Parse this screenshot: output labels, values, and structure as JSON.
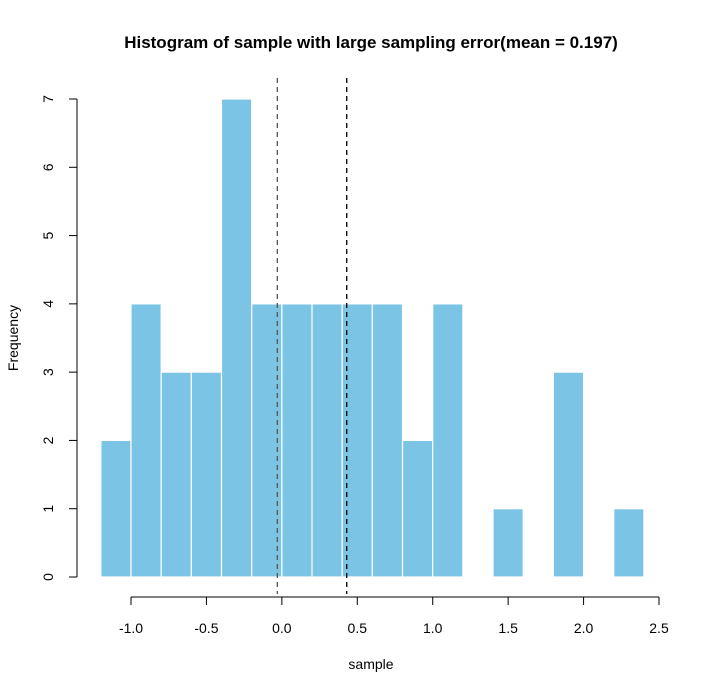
{
  "chart_data": {
    "type": "bar",
    "title": "Histogram of sample with large sampling error(mean = 0.197)",
    "xlabel": "sample",
    "ylabel": "Frequency",
    "bin_width": 0.2,
    "bins": [
      {
        "x0": -1.2,
        "x1": -1.0,
        "count": 2
      },
      {
        "x0": -1.0,
        "x1": -0.8,
        "count": 4
      },
      {
        "x0": -0.8,
        "x1": -0.6,
        "count": 3
      },
      {
        "x0": -0.6,
        "x1": -0.4,
        "count": 3
      },
      {
        "x0": -0.4,
        "x1": -0.2,
        "count": 7
      },
      {
        "x0": -0.2,
        "x1": 0.0,
        "count": 4
      },
      {
        "x0": 0.0,
        "x1": 0.2,
        "count": 4
      },
      {
        "x0": 0.2,
        "x1": 0.4,
        "count": 4
      },
      {
        "x0": 0.4,
        "x1": 0.6,
        "count": 4
      },
      {
        "x0": 0.6,
        "x1": 0.8,
        "count": 4
      },
      {
        "x0": 0.8,
        "x1": 1.0,
        "count": 2
      },
      {
        "x0": 1.0,
        "x1": 1.2,
        "count": 4
      },
      {
        "x0": 1.2,
        "x1": 1.4,
        "count": 0
      },
      {
        "x0": 1.4,
        "x1": 1.6,
        "count": 1
      },
      {
        "x0": 1.6,
        "x1": 1.8,
        "count": 0
      },
      {
        "x0": 1.8,
        "x1": 2.0,
        "count": 3
      },
      {
        "x0": 2.0,
        "x1": 2.2,
        "count": 0
      },
      {
        "x0": 2.2,
        "x1": 2.4,
        "count": 1
      }
    ],
    "xlim": [
      -1.0,
      2.5
    ],
    "ylim": [
      0,
      7
    ],
    "x_ticks": [
      -1.0,
      -0.5,
      0.0,
      0.5,
      1.0,
      1.5,
      2.0,
      2.5
    ],
    "x_tick_labels": [
      "-1.0",
      "-0.5",
      "0.0",
      "0.5",
      "1.0",
      "1.5",
      "2.0",
      "2.5"
    ],
    "y_ticks": [
      0,
      1,
      2,
      3,
      4,
      5,
      6,
      7
    ],
    "y_tick_labels": [
      "0",
      "1",
      "2",
      "3",
      "4",
      "5",
      "6",
      "7"
    ],
    "reference_lines": [
      {
        "x": -0.03,
        "style": "dashed",
        "color": "#555555"
      },
      {
        "x": 0.43,
        "style": "dashed",
        "color": "#000000"
      }
    ],
    "bar_color": "#7BC4E6",
    "bar_edge_color": "#ffffff",
    "grid": false,
    "legend": "none"
  }
}
